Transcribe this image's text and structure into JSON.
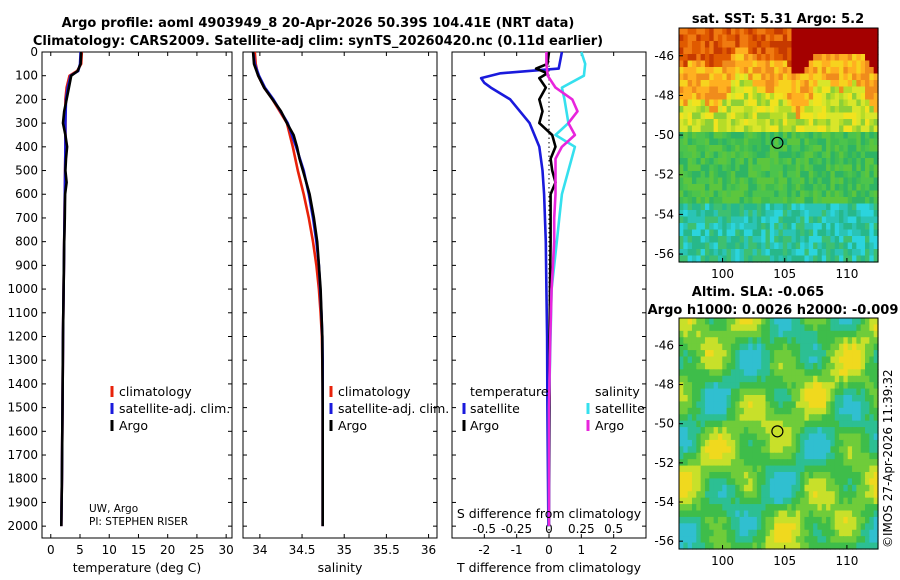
{
  "header": {
    "title_line1": "Argo profile: aoml 4903949_8 20-Apr-2026 50.39S 104.41E (NRT data)",
    "title_line2": "Climatology: CARS2009. Satellite-adj clim: synTS_20260420.nc (0.11d earlier)"
  },
  "colors": {
    "climatology": "#e8220a",
    "satellite_adj": "#1a1adc",
    "argo": "#000000",
    "satellite_s": "#35e0ee",
    "argo_s": "#e825dc"
  },
  "depth_axis": {
    "ticks": [
      0,
      100,
      200,
      300,
      400,
      500,
      600,
      700,
      800,
      900,
      1000,
      1100,
      1200,
      1300,
      1400,
      1500,
      1600,
      1700,
      1800,
      1900,
      2000
    ],
    "range": [
      0,
      2050
    ]
  },
  "chart_data": [
    {
      "type": "line",
      "id": "temperature",
      "xlabel": "temperature (deg C)",
      "ylabel": "depth",
      "xlim": [
        -1.5,
        31
      ],
      "xticks": [
        0,
        5,
        10,
        15,
        20,
        25,
        30
      ],
      "legend": [
        "climatology",
        "satellite-adj. clim.",
        "Argo"
      ],
      "credit_line1": "UW, Argo",
      "credit_line2": "PI: STEPHEN RISER",
      "series": [
        {
          "name": "climatology",
          "color_key": "climatology",
          "depth": [
            0,
            50,
            80,
            100,
            150,
            200,
            300,
            400,
            500,
            600,
            800,
            1000,
            1200,
            1500,
            1800,
            2000
          ],
          "values": [
            5.3,
            5.2,
            4.5,
            3.2,
            2.7,
            2.5,
            2.5,
            2.5,
            2.45,
            2.4,
            2.3,
            2.2,
            2.1,
            2.0,
            1.9,
            1.8
          ]
        },
        {
          "name": "satellite-adj. clim.",
          "color_key": "satellite_adj",
          "depth": [
            0,
            50,
            80,
            100,
            150,
            200,
            300,
            400,
            500,
            600,
            800,
            1000,
            1200,
            1500,
            1800,
            2000
          ],
          "values": [
            5.1,
            5.0,
            4.7,
            3.4,
            2.9,
            2.6,
            2.5,
            2.5,
            2.45,
            2.4,
            2.3,
            2.2,
            2.1,
            2.0,
            1.9,
            1.8
          ]
        },
        {
          "name": "Argo",
          "color_key": "argo",
          "depth": [
            0,
            50,
            80,
            100,
            150,
            200,
            250,
            300,
            350,
            400,
            450,
            500,
            550,
            600,
            700,
            800,
            1000,
            1200,
            1500,
            1800,
            2000
          ],
          "values": [
            5.2,
            5.1,
            4.6,
            3.5,
            3.1,
            2.7,
            2.3,
            2.1,
            2.5,
            2.8,
            2.6,
            2.5,
            2.7,
            2.45,
            2.4,
            2.3,
            2.2,
            2.1,
            2.0,
            1.9,
            1.8
          ]
        }
      ]
    },
    {
      "type": "line",
      "id": "salinity",
      "xlabel": "salinity",
      "xlim": [
        33.8,
        36.1
      ],
      "xticks": [
        34,
        34.5,
        35,
        35.5,
        36
      ],
      "xticklabels": [
        "34",
        "34.5",
        "35",
        "35.5",
        "36"
      ],
      "legend": [
        "climatology",
        "satellite-adj. clim.",
        "Argo"
      ],
      "series": [
        {
          "name": "climatology",
          "color_key": "climatology",
          "depth": [
            0,
            50,
            100,
            150,
            200,
            300,
            400,
            500,
            600,
            700,
            800,
            900,
            1000,
            1100,
            1200,
            1300,
            1400,
            1500,
            1800,
            2000
          ],
          "values": [
            33.94,
            33.95,
            33.98,
            34.05,
            34.15,
            34.32,
            34.39,
            34.45,
            34.52,
            34.58,
            34.63,
            34.67,
            34.7,
            34.72,
            34.735,
            34.74,
            34.745,
            34.745,
            34.745,
            34.745
          ]
        },
        {
          "name": "satellite-adj. clim.",
          "color_key": "satellite_adj",
          "depth": [
            0,
            50,
            100,
            150,
            200,
            300,
            400,
            500,
            600,
            700,
            800,
            900,
            1000,
            1100,
            1200,
            1300,
            1400,
            1500,
            1800,
            2000
          ],
          "values": [
            33.92,
            33.94,
            33.99,
            34.06,
            34.16,
            34.33,
            34.43,
            34.52,
            34.58,
            34.63,
            34.67,
            34.7,
            34.715,
            34.73,
            34.74,
            34.745,
            34.745,
            34.745,
            34.745,
            34.745
          ]
        },
        {
          "name": "Argo",
          "color_key": "argo",
          "depth": [
            0,
            50,
            100,
            150,
            200,
            250,
            300,
            350,
            400,
            450,
            500,
            550,
            600,
            700,
            800,
            900,
            1000,
            1200,
            1500,
            2000
          ],
          "values": [
            33.92,
            33.93,
            33.98,
            34.05,
            34.15,
            34.25,
            34.32,
            34.4,
            34.44,
            34.47,
            34.51,
            34.55,
            34.59,
            34.64,
            34.68,
            34.7,
            34.72,
            34.74,
            34.745,
            34.745
          ]
        }
      ]
    },
    {
      "type": "line",
      "id": "differences",
      "xlabel": "T difference from climatology",
      "xlabel_top": "S difference from climatology",
      "xlim": [
        -3,
        3
      ],
      "xticks": [
        -2,
        -1,
        0,
        1,
        2
      ],
      "xticklabels": [
        "-2",
        "-1",
        "0",
        "1",
        "2"
      ],
      "top_ticks": [
        -0.5,
        -0.25,
        0,
        0.25,
        0.5
      ],
      "top_ticklabels": [
        "-0.5",
        "-0.25",
        "0",
        "0.25",
        "0.5"
      ],
      "legend_left_title": "temperature",
      "legend_right_title": "salinity",
      "legend_left": [
        "satellite",
        "Argo"
      ],
      "legend_right": [
        "satellite",
        "Argo"
      ],
      "series": [
        {
          "name": "temperature satellite",
          "color_key": "satellite_adj",
          "depth": [
            0,
            70,
            90,
            110,
            130,
            150,
            200,
            300,
            400,
            500,
            600,
            800,
            1000,
            1200,
            1500,
            1800,
            2000
          ],
          "values": [
            0.4,
            0.3,
            -1.5,
            -2.1,
            -2.0,
            -1.8,
            -1.2,
            -0.6,
            -0.3,
            -0.2,
            -0.15,
            -0.1,
            -0.08,
            -0.06,
            -0.05,
            -0.03,
            -0.02
          ]
        },
        {
          "name": "temperature Argo",
          "color_key": "argo",
          "depth": [
            0,
            50,
            70,
            90,
            110,
            150,
            200,
            250,
            300,
            350,
            400,
            450,
            500,
            550,
            600,
            700,
            800,
            1000,
            1200,
            1500,
            2000
          ],
          "values": [
            0.0,
            -0.05,
            -0.4,
            -0.05,
            -0.3,
            -0.1,
            -0.3,
            -0.2,
            -0.3,
            0.1,
            0.2,
            0.05,
            0.1,
            0.2,
            0.05,
            0.05,
            0.05,
            0.03,
            0.02,
            0.02,
            0.0
          ]
        },
        {
          "name": "salinity satellite",
          "color_key": "satellite_s",
          "depth": [
            0,
            50,
            100,
            150,
            200,
            300,
            350,
            400,
            500,
            600,
            700,
            800,
            1000,
            1500,
            2000
          ],
          "values": [
            0.25,
            0.28,
            0.27,
            0.1,
            0.12,
            0.15,
            0.05,
            0.2,
            0.15,
            0.1,
            0.08,
            0.06,
            0.02,
            0.0,
            0.0
          ]
        },
        {
          "name": "salinity Argo",
          "color_key": "argo_s",
          "depth": [
            0,
            50,
            100,
            150,
            200,
            250,
            300,
            350,
            400,
            450,
            500,
            600,
            700,
            800,
            1000,
            1200,
            1500,
            2000
          ],
          "values": [
            -0.02,
            -0.02,
            -0.01,
            0.05,
            0.18,
            0.22,
            0.15,
            0.2,
            0.1,
            0.05,
            0.05,
            0.05,
            0.04,
            0.04,
            0.02,
            0.01,
            0.0,
            0.0
          ]
        }
      ]
    },
    {
      "type": "heatmap",
      "id": "sst_map",
      "title": "sat. SST: 5.31 Argo: 5.2",
      "xlim": [
        96.5,
        112.5
      ],
      "ylim": [
        -56.4,
        -44.6
      ],
      "xticks": [
        100,
        105,
        110
      ],
      "yticks": [
        -46,
        -48,
        -50,
        -52,
        -54,
        -56
      ],
      "marker": {
        "lon": 104.41,
        "lat": -50.39
      }
    },
    {
      "type": "heatmap",
      "id": "sla_map",
      "title_line1": "Altim. SLA: -0.065",
      "title_line2": "Argo h1000: 0.0026 h2000: -0.009",
      "xlim": [
        96.5,
        112.5
      ],
      "ylim": [
        -56.4,
        -44.6
      ],
      "xticks": [
        100,
        105,
        110
      ],
      "yticks": [
        -46,
        -48,
        -50,
        -52,
        -54,
        -56
      ],
      "marker": {
        "lon": 104.41,
        "lat": -50.39
      }
    }
  ],
  "footer": {
    "watermark": "©IMOS 27-Apr-2026 11:39:32"
  }
}
